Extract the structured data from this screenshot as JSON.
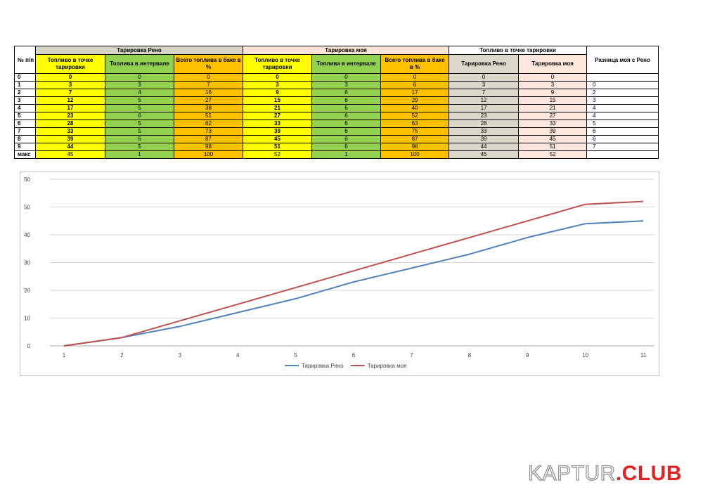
{
  "table": {
    "row_header": "№ п/п",
    "groups": {
      "reno": "Тарировка Рено",
      "moya": "Тарировка моя",
      "point": "Топливо в точке тарировки",
      "diff": "Разница моя с Рено"
    },
    "subheaders": {
      "fuel_point": "Топливо в точке тарировки",
      "fuel_interval": "Топлива в интервале",
      "fuel_total": "Всего топлива в баке в %",
      "point_reno": "Тарировка Рено",
      "point_moya": "Тарировка моя"
    },
    "rows": [
      {
        "n": "0",
        "r1": "0",
        "r2": "0",
        "r3": "0",
        "m1": "0",
        "m2": "0",
        "m3": "0",
        "p1": "0",
        "p2": "0",
        "d": ""
      },
      {
        "n": "1",
        "r1": "3",
        "r2": "3",
        "r3": "7",
        "m1": "3",
        "m2": "3",
        "m3": "6",
        "p1": "3",
        "p2": "3",
        "d": "0"
      },
      {
        "n": "2",
        "r1": "7",
        "r2": "4",
        "r3": "16",
        "m1": "9",
        "m2": "6",
        "m3": "17",
        "p1": "7",
        "p2": "9",
        "d": "2"
      },
      {
        "n": "3",
        "r1": "12",
        "r2": "5",
        "r3": "27",
        "m1": "15",
        "m2": "6",
        "m3": "29",
        "p1": "12",
        "p2": "15",
        "d": "3"
      },
      {
        "n": "4",
        "r1": "17",
        "r2": "5",
        "r3": "38",
        "m1": "21",
        "m2": "6",
        "m3": "40",
        "p1": "17",
        "p2": "21",
        "d": "4"
      },
      {
        "n": "5",
        "r1": "23",
        "r2": "6",
        "r3": "51",
        "m1": "27",
        "m2": "6",
        "m3": "52",
        "p1": "23",
        "p2": "27",
        "d": "4"
      },
      {
        "n": "6",
        "r1": "28",
        "r2": "5",
        "r3": "62",
        "m1": "33",
        "m2": "6",
        "m3": "63",
        "p1": "28",
        "p2": "33",
        "d": "5"
      },
      {
        "n": "7",
        "r1": "33",
        "r2": "5",
        "r3": "73",
        "m1": "39",
        "m2": "6",
        "m3": "75",
        "p1": "33",
        "p2": "39",
        "d": "6"
      },
      {
        "n": "8",
        "r1": "39",
        "r2": "6",
        "r3": "87",
        "m1": "45",
        "m2": "6",
        "m3": "87",
        "p1": "39",
        "p2": "45",
        "d": "6"
      },
      {
        "n": "9",
        "r1": "44",
        "r2": "5",
        "r3": "98",
        "m1": "51",
        "m2": "6",
        "m3": "98",
        "p1": "44",
        "p2": "51",
        "d": "7"
      },
      {
        "n": "макс",
        "r1": "45",
        "r2": "1",
        "r3": "100",
        "m1": "52",
        "m2": "1",
        "m3": "100",
        "p1": "45",
        "p2": "52",
        "d": ""
      }
    ]
  },
  "chart_data": {
    "type": "line",
    "x": [
      1,
      2,
      3,
      4,
      5,
      6,
      7,
      8,
      9,
      10,
      11
    ],
    "ylim": [
      0,
      60
    ],
    "yticks": [
      0,
      10,
      20,
      30,
      40,
      50,
      60
    ],
    "grid": true,
    "legend_position": "bottom",
    "series": [
      {
        "name": "Тарировка Рено",
        "values": [
          0,
          3,
          7,
          12,
          17,
          23,
          28,
          33,
          39,
          44,
          45
        ],
        "color": "#4f81bd"
      },
      {
        "name": "Тарировка моя",
        "values": [
          0,
          3,
          9,
          15,
          21,
          27,
          33,
          39,
          45,
          51,
          52
        ],
        "color": "#c0504d"
      }
    ]
  },
  "watermark": {
    "main": "KAPTUR",
    "dot": ".",
    "club": "CLUB",
    "accent_color": "#e32323"
  }
}
